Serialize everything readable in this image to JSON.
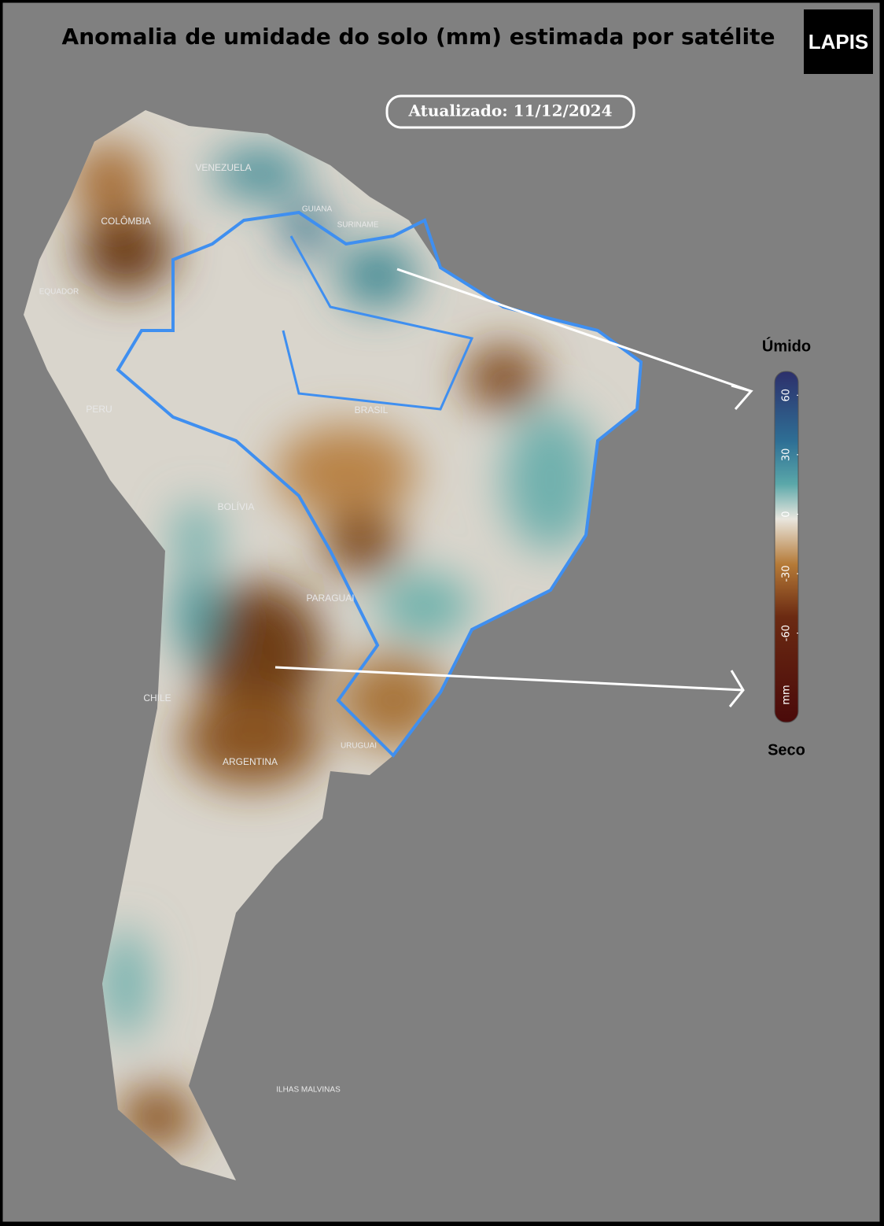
{
  "title": "Anomalia de umidade do solo (mm) estimada por satélite",
  "updated": "Atualizado: 11/12/2024",
  "logo": "LAPIS",
  "labels": [
    "VENEZUELA",
    "GUIANA",
    "SURINAME",
    "COLÔMBIA",
    "EQUADOR",
    "PERU",
    "BRASIL",
    "BOLÍVIA",
    "PARAGUAI",
    "CHILE",
    "ARGENTINA",
    "URUGUAI",
    "ILHAS MALVINAS"
  ],
  "colorbar": {
    "top_label": "Úmido",
    "bottom_label": "Seco",
    "unit": "mm",
    "lim": [
      -105,
      72
    ],
    "ticks": [
      60,
      30,
      0,
      -30,
      -60
    ]
  }
}
